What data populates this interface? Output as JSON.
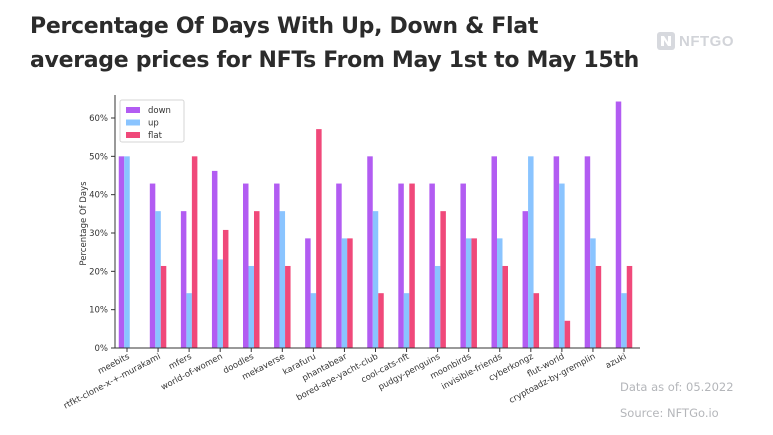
{
  "title": {
    "line1": "Percentage Of Days With Up, Down & Flat",
    "line2": "average prices for NFTs From May 1st to May 15th"
  },
  "brand": {
    "name": "NFTGO",
    "icon": "nftgo-logo-icon"
  },
  "footer": {
    "data_as_of": "Data as of: 05.2022",
    "source": "Source: NFTGo.io"
  },
  "chart_data": {
    "type": "bar",
    "ylabel": "Percentage Of Days",
    "xlabel": "",
    "ylim": [
      0,
      66
    ],
    "yticks": [
      0,
      10,
      20,
      30,
      40,
      50,
      60
    ],
    "ytick_labels": [
      "0%",
      "10%",
      "20%",
      "30%",
      "40%",
      "50%",
      "60%"
    ],
    "legend_position": "top-left",
    "grid": false,
    "categories": [
      "meebits",
      "rtfkt-clone-x-+-murakami",
      "mfers",
      "world-of-women",
      "doodles",
      "mekaverse",
      "karafuru",
      "phantabear",
      "bored-ape-yacht-club",
      "cool-cats-nft",
      "pudgy-penguins",
      "moonbirds",
      "invisible-friends",
      "cyberkongz",
      "flut-world",
      "cryptoadz-by-gremplin",
      "azuki"
    ],
    "series": [
      {
        "name": "down",
        "color": "#b25cf2",
        "values": [
          50,
          42.9,
          35.7,
          46.2,
          42.9,
          42.9,
          28.6,
          42.9,
          50,
          42.9,
          42.9,
          42.9,
          50,
          35.7,
          50,
          50,
          64.3
        ]
      },
      {
        "name": "up",
        "color": "#8ac4ff",
        "values": [
          50,
          35.7,
          14.3,
          23.1,
          21.4,
          35.7,
          14.3,
          28.6,
          35.7,
          14.3,
          21.4,
          28.6,
          28.6,
          50,
          42.9,
          28.6,
          14.3
        ]
      },
      {
        "name": "flat",
        "color": "#f0497a",
        "values": [
          0,
          21.4,
          50,
          30.8,
          35.7,
          21.4,
          57.1,
          28.6,
          14.3,
          42.9,
          35.7,
          28.6,
          21.4,
          14.3,
          7.1,
          21.4,
          21.4
        ]
      }
    ]
  }
}
